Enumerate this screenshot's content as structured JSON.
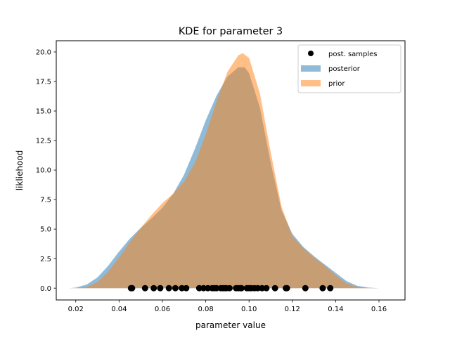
{
  "chart_data": {
    "type": "area",
    "title": "KDE for parameter 3",
    "xlabel": "parameter value",
    "ylabel": "likliehood",
    "xlim": [
      0.011,
      0.172
    ],
    "ylim": [
      -1.0,
      20.95
    ],
    "x_ticks": [
      0.02,
      0.04,
      0.06,
      0.08,
      0.1,
      0.12,
      0.14,
      0.16
    ],
    "x_tick_labels": [
      "0.02",
      "0.04",
      "0.06",
      "0.08",
      "0.10",
      "0.12",
      "0.14",
      "0.16"
    ],
    "y_ticks": [
      0.0,
      2.5,
      5.0,
      7.5,
      10.0,
      12.5,
      15.0,
      17.5,
      20.0
    ],
    "y_tick_labels": [
      "0.0",
      "2.5",
      "5.0",
      "7.5",
      "10.0",
      "12.5",
      "15.0",
      "17.5",
      "20.0"
    ],
    "grid": false,
    "legend_position": "top-right",
    "legend": [
      {
        "label": "post. samples",
        "kind": "marker",
        "color": "#000000"
      },
      {
        "label": "posterior",
        "kind": "patch",
        "color": "#1f77b4"
      },
      {
        "label": "prior",
        "kind": "patch",
        "color": "#ff7f0e"
      }
    ],
    "series": [
      {
        "name": "posterior",
        "color": "#1f77b4",
        "alpha": 0.5,
        "x": [
          0.017,
          0.02,
          0.025,
          0.03,
          0.035,
          0.04,
          0.045,
          0.05,
          0.055,
          0.06,
          0.065,
          0.07,
          0.075,
          0.08,
          0.085,
          0.09,
          0.095,
          0.098,
          0.1,
          0.105,
          0.11,
          0.115,
          0.12,
          0.125,
          0.13,
          0.135,
          0.14,
          0.145,
          0.15,
          0.155,
          0.16,
          0.165
        ],
        "y": [
          0.0,
          0.05,
          0.3,
          0.9,
          1.9,
          3.1,
          4.2,
          5.1,
          5.9,
          6.8,
          8.0,
          9.6,
          11.8,
          14.2,
          16.3,
          17.9,
          18.7,
          18.7,
          18.2,
          15.3,
          10.6,
          6.6,
          4.6,
          3.5,
          2.7,
          2.0,
          1.3,
          0.6,
          0.2,
          0.05,
          0.0,
          0.0
        ]
      },
      {
        "name": "prior",
        "color": "#ff7f0e",
        "alpha": 0.5,
        "x": [
          0.02,
          0.025,
          0.03,
          0.035,
          0.04,
          0.045,
          0.05,
          0.055,
          0.06,
          0.065,
          0.07,
          0.075,
          0.08,
          0.085,
          0.09,
          0.095,
          0.097,
          0.1,
          0.105,
          0.11,
          0.115,
          0.12,
          0.125,
          0.13,
          0.135,
          0.14,
          0.145,
          0.15,
          0.155,
          0.16
        ],
        "y": [
          0.0,
          0.1,
          0.5,
          1.4,
          2.6,
          3.9,
          5.1,
          6.2,
          7.2,
          8.0,
          9.0,
          10.6,
          13.0,
          15.8,
          18.3,
          19.7,
          19.9,
          19.5,
          16.5,
          11.5,
          6.9,
          4.4,
          3.4,
          2.6,
          1.9,
          1.1,
          0.4,
          0.1,
          0.02,
          0.0
        ]
      }
    ],
    "samples": {
      "name": "post. samples",
      "color": "#000000",
      "y": 0.0,
      "x": [
        0.0455,
        0.046,
        0.052,
        0.056,
        0.059,
        0.063,
        0.066,
        0.069,
        0.071,
        0.077,
        0.079,
        0.081,
        0.083,
        0.084,
        0.085,
        0.087,
        0.088,
        0.089,
        0.0895,
        0.091,
        0.094,
        0.095,
        0.096,
        0.0965,
        0.099,
        0.1,
        0.101,
        0.1025,
        0.104,
        0.106,
        0.108,
        0.112,
        0.117,
        0.1175,
        0.126,
        0.134,
        0.1375
      ]
    }
  }
}
